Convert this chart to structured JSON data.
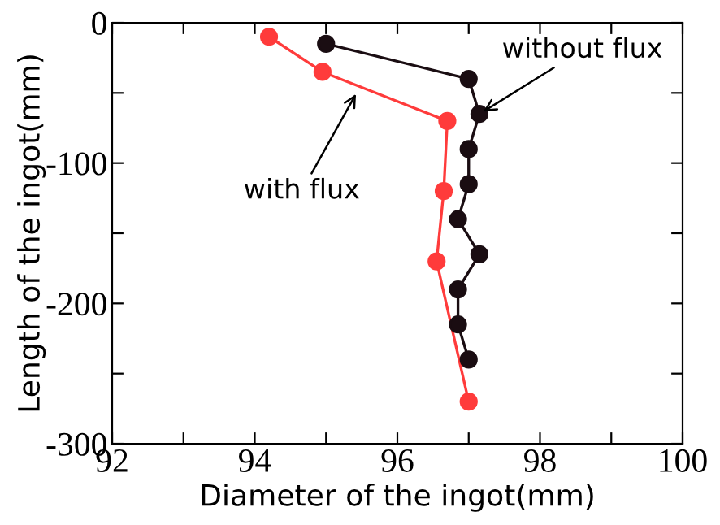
{
  "chart_data": {
    "type": "line",
    "xlabel": "Diameter of the ingot(mm)",
    "ylabel": "Length of the ingot(mm)",
    "xlim": [
      92,
      100
    ],
    "ylim": [
      -300,
      0
    ],
    "xticks": [
      92,
      {
        "value": 93,
        "label": null
      },
      94,
      {
        "value": 95,
        "label": null
      },
      96,
      {
        "value": 97,
        "label": null
      },
      98,
      {
        "value": 99,
        "label": null
      },
      100
    ],
    "yticks": [
      -300,
      {
        "value": -250,
        "label": null
      },
      -200,
      {
        "value": -150,
        "label": null
      },
      -100,
      {
        "value": -50,
        "label": null
      },
      0
    ],
    "marker": "circle",
    "line_style": "solid",
    "grid": false,
    "legend": false,
    "series": [
      {
        "color": "#ff3b3b",
        "x": [
          94.2,
          94.95,
          96.7,
          96.65,
          96.55,
          97.0
        ],
        "values": [
          -10,
          -35,
          -70,
          -120,
          -170,
          -270
        ]
      },
      {
        "color": "#1a0d12",
        "x": [
          95.0,
          97.0,
          97.15,
          97.0,
          97.0,
          96.85,
          97.15,
          96.85,
          96.85,
          97.0
        ],
        "values": [
          -15,
          -40,
          -65,
          -90,
          -115,
          -140,
          -165,
          -190,
          -215,
          -240
        ]
      }
    ],
    "annotations": [
      {
        "text": "without flux",
        "x": 97.15,
        "y": -65
      },
      {
        "text": "with flux",
        "x": 95.45,
        "y": -48
      }
    ]
  }
}
